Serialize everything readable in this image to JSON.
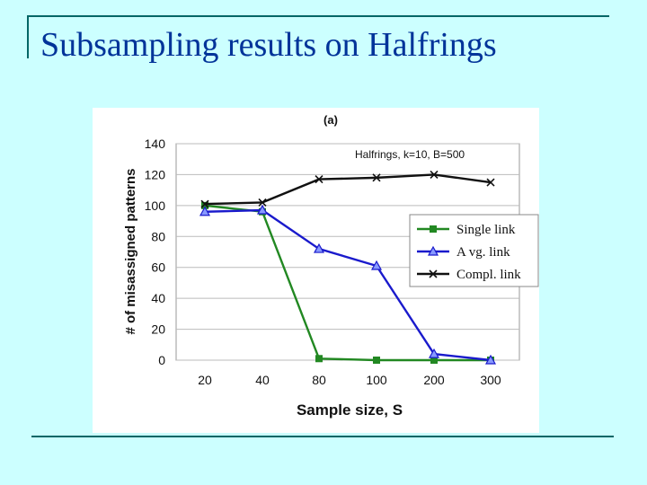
{
  "slide": {
    "title": "Subsampling results on Halfrings"
  },
  "chart_data": {
    "type": "line",
    "panel_label": "(a)",
    "annotation": "Halfrings,  k=10, B=500",
    "xlabel": "Sample size, S",
    "ylabel": "# of misassigned patterns",
    "categories": [
      "20",
      "40",
      "80",
      "100",
      "200",
      "300"
    ],
    "ylim": [
      0,
      140
    ],
    "yticks": [
      0,
      20,
      40,
      60,
      80,
      100,
      120,
      140
    ],
    "grid": "horizontal",
    "legend_position": "right-middle",
    "series": [
      {
        "name": "Single  link",
        "color": "#228822",
        "marker": "square",
        "values": [
          100,
          96,
          1,
          0,
          0,
          0
        ]
      },
      {
        "name": "A vg.  link",
        "color": "#1a1acc",
        "marker": "triangle",
        "values": [
          96,
          97,
          72,
          61,
          4,
          0
        ]
      },
      {
        "name": "Compl. link",
        "color": "#111111",
        "marker": "x",
        "values": [
          101,
          102,
          117,
          118,
          120,
          115
        ]
      }
    ]
  }
}
